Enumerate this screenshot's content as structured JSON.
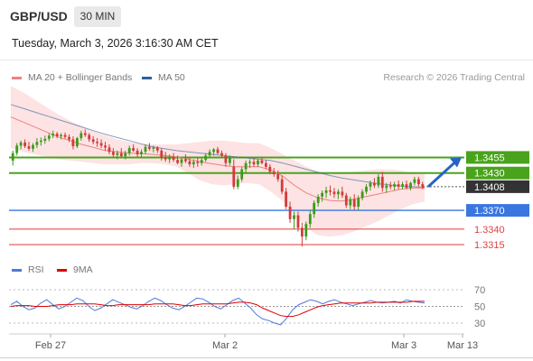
{
  "header": {
    "symbol": "GBP/USD",
    "timeframe": "30 MIN",
    "datetime": "Tuesday, March 3, 2026 3:16:30 AM CET"
  },
  "legend": {
    "ma20_label": "MA 20 + Bollinger Bands",
    "ma20_color": "#f08080",
    "ma50_label": "MA 50",
    "ma50_color": "#2f5f9f",
    "credit": "Research © 2026 Trading Central"
  },
  "rsi_legend": {
    "rsi_label": "RSI",
    "rsi_color": "#4f79d6",
    "ma9_label": "9MA",
    "ma9_color": "#e00000"
  },
  "chart_data": [
    {
      "type": "candlestick",
      "symbol": "GBP/USD",
      "timeframe": "30 MIN",
      "x_ticks": [
        "Feb 27",
        "Mar 2",
        "Mar 3",
        "Mar 13"
      ],
      "price_levels": [
        {
          "label": "1.3455",
          "value": 1.3455,
          "kind": "resistance",
          "color": "#4aa31c"
        },
        {
          "label": "1.3430",
          "value": 1.343,
          "kind": "resistance",
          "color": "#4aa31c"
        },
        {
          "label": "1.3408",
          "value": 1.3408,
          "kind": "last_price",
          "color": "#333333"
        },
        {
          "label": "1.3370",
          "value": 1.337,
          "kind": "pivot",
          "color": "#3a76e0"
        },
        {
          "label": "1.3340",
          "value": 1.334,
          "kind": "support",
          "color": "#e04040"
        },
        {
          "label": "1.3315",
          "value": 1.3315,
          "kind": "support",
          "color": "#e04040"
        }
      ],
      "forecast": {
        "direction": "up",
        "from": 1.3408,
        "to": 1.3455,
        "color": "#2565c7"
      },
      "series": [
        {
          "name": "MA 20 + Bollinger Bands",
          "color": "#f08080",
          "ma": [
            1.352,
            1.3512,
            1.3504,
            1.3496,
            1.3488,
            1.3482,
            1.3476,
            1.3471,
            1.3466,
            1.3464,
            1.3462,
            1.3461,
            1.346,
            1.3458,
            1.3456,
            1.3452,
            1.3448,
            1.3445,
            1.3442,
            1.344,
            1.344,
            1.344,
            1.3435,
            1.3425,
            1.341,
            1.3398,
            1.339,
            1.3386,
            1.3385,
            1.3388,
            1.3392,
            1.3396,
            1.34,
            1.3404,
            1.3406,
            1.3406
          ],
          "upper": [
            1.357,
            1.356,
            1.3548,
            1.3536,
            1.3524,
            1.3514,
            1.3505,
            1.3497,
            1.349,
            1.3484,
            1.348,
            1.3477,
            1.3476,
            1.3476,
            1.3476,
            1.3478,
            1.348,
            1.3482,
            1.3482,
            1.348,
            1.3478,
            1.3478,
            1.347,
            1.346,
            1.345,
            1.344,
            1.3432,
            1.3428,
            1.343,
            1.3432,
            1.3434,
            1.3436,
            1.3436,
            1.3434,
            1.343,
            1.3428
          ],
          "lower": [
            1.347,
            1.3464,
            1.346,
            1.3456,
            1.3452,
            1.345,
            1.3448,
            1.3446,
            1.3444,
            1.3444,
            1.3444,
            1.3446,
            1.3446,
            1.3444,
            1.344,
            1.343,
            1.3418,
            1.3412,
            1.341,
            1.3412,
            1.3414,
            1.3412,
            1.34,
            1.3385,
            1.3362,
            1.3342,
            1.333,
            1.3328,
            1.333,
            1.3336,
            1.3344,
            1.3352,
            1.3362,
            1.3372,
            1.338,
            1.3384
          ]
        },
        {
          "name": "MA 50",
          "color": "#2f5f9f",
          "ma": [
            1.354,
            1.3534,
            1.3528,
            1.3522,
            1.3516,
            1.351,
            1.3504,
            1.3498,
            1.3492,
            1.3487,
            1.3482,
            1.3477,
            1.3472,
            1.3469,
            1.3466,
            1.3464,
            1.3462,
            1.346,
            1.3458,
            1.3456,
            1.3454,
            1.3452,
            1.345,
            1.3446,
            1.3441,
            1.3436,
            1.3431,
            1.3426,
            1.3422,
            1.3419,
            1.3416,
            1.3413,
            1.3411,
            1.3409,
            1.3408,
            1.3407
          ]
        }
      ],
      "candles": [
        [
          1.345,
          1.3466,
          1.3442,
          1.3462
        ],
        [
          1.3462,
          1.3478,
          1.3458,
          1.3474
        ],
        [
          1.3474,
          1.3482,
          1.3468,
          1.3479
        ],
        [
          1.3479,
          1.3484,
          1.347,
          1.3473
        ],
        [
          1.3473,
          1.348,
          1.3466,
          1.3469
        ],
        [
          1.3469,
          1.3478,
          1.3464,
          1.3475
        ],
        [
          1.3475,
          1.3486,
          1.347,
          1.348
        ],
        [
          1.348,
          1.3487,
          1.3474,
          1.3482
        ],
        [
          1.3482,
          1.349,
          1.3477,
          1.3485
        ],
        [
          1.3485,
          1.3494,
          1.3481,
          1.349
        ],
        [
          1.349,
          1.3498,
          1.3486,
          1.3493
        ],
        [
          1.3493,
          1.3496,
          1.3486,
          1.3489
        ],
        [
          1.3489,
          1.3494,
          1.3484,
          1.3491
        ],
        [
          1.3491,
          1.3495,
          1.3485,
          1.3488
        ],
        [
          1.3488,
          1.3492,
          1.348,
          1.3484
        ],
        [
          1.3484,
          1.3489,
          1.3468,
          1.3473
        ],
        [
          1.3473,
          1.3488,
          1.347,
          1.3486
        ],
        [
          1.3486,
          1.3498,
          1.3482,
          1.3494
        ],
        [
          1.3494,
          1.35,
          1.3488,
          1.3491
        ],
        [
          1.3491,
          1.3494,
          1.348,
          1.3484
        ],
        [
          1.3484,
          1.3489,
          1.3476,
          1.348
        ],
        [
          1.348,
          1.3486,
          1.3472,
          1.3478
        ],
        [
          1.3478,
          1.3484,
          1.347,
          1.3474
        ],
        [
          1.3474,
          1.348,
          1.3466,
          1.3471
        ],
        [
          1.3471,
          1.3476,
          1.346,
          1.3464
        ],
        [
          1.3464,
          1.347,
          1.3456,
          1.3459
        ],
        [
          1.3459,
          1.3466,
          1.3452,
          1.3462
        ],
        [
          1.3462,
          1.347,
          1.3454,
          1.3457
        ],
        [
          1.3457,
          1.3466,
          1.3452,
          1.3462
        ],
        [
          1.3462,
          1.3474,
          1.3458,
          1.347
        ],
        [
          1.347,
          1.3476,
          1.3464,
          1.3466
        ],
        [
          1.3466,
          1.347,
          1.3456,
          1.346
        ],
        [
          1.346,
          1.3468,
          1.3455,
          1.3464
        ],
        [
          1.3464,
          1.3476,
          1.346,
          1.3472
        ],
        [
          1.3472,
          1.3478,
          1.3466,
          1.3469
        ],
        [
          1.3469,
          1.3474,
          1.3463,
          1.3471
        ],
        [
          1.3471,
          1.3473,
          1.3462,
          1.3466
        ],
        [
          1.3466,
          1.347,
          1.345,
          1.3455
        ],
        [
          1.3455,
          1.3464,
          1.3448,
          1.3452
        ],
        [
          1.3452,
          1.346,
          1.3446,
          1.3456
        ],
        [
          1.3456,
          1.3462,
          1.3448,
          1.3451
        ],
        [
          1.3451,
          1.3458,
          1.3444,
          1.3446
        ],
        [
          1.3446,
          1.3456,
          1.344,
          1.3452
        ],
        [
          1.3452,
          1.346,
          1.3446,
          1.3449
        ],
        [
          1.3449,
          1.3456,
          1.344,
          1.3444
        ],
        [
          1.3444,
          1.3452,
          1.3438,
          1.3448
        ],
        [
          1.3448,
          1.3455,
          1.344,
          1.3446
        ],
        [
          1.3446,
          1.3454,
          1.3442,
          1.3451
        ],
        [
          1.3451,
          1.3462,
          1.3448,
          1.3458
        ],
        [
          1.3458,
          1.3468,
          1.3454,
          1.3464
        ],
        [
          1.3464,
          1.347,
          1.3458,
          1.3468
        ],
        [
          1.3468,
          1.3472,
          1.346,
          1.3462
        ],
        [
          1.3462,
          1.3466,
          1.3454,
          1.3458
        ],
        [
          1.3458,
          1.3462,
          1.344,
          1.3446
        ],
        [
          1.3446,
          1.3458,
          1.3442,
          1.3454
        ],
        [
          1.344,
          1.3452,
          1.3404,
          1.3408
        ],
        [
          1.3408,
          1.3426,
          1.3404,
          1.342
        ],
        [
          1.342,
          1.344,
          1.3416,
          1.3436
        ],
        [
          1.3436,
          1.345,
          1.343,
          1.3446
        ],
        [
          1.3446,
          1.3452,
          1.3438,
          1.3448
        ],
        [
          1.3448,
          1.3454,
          1.344,
          1.3444
        ],
        [
          1.3444,
          1.3452,
          1.344,
          1.345
        ],
        [
          1.345,
          1.3456,
          1.3444,
          1.3446
        ],
        [
          1.3446,
          1.345,
          1.3436,
          1.344
        ],
        [
          1.344,
          1.3444,
          1.3428,
          1.3432
        ],
        [
          1.3432,
          1.3438,
          1.3424,
          1.3428
        ],
        [
          1.3428,
          1.3434,
          1.3416,
          1.342
        ],
        [
          1.342,
          1.3426,
          1.3396,
          1.34
        ],
        [
          1.34,
          1.3406,
          1.3372,
          1.3376
        ],
        [
          1.3376,
          1.3384,
          1.335,
          1.3356
        ],
        [
          1.3356,
          1.3368,
          1.334,
          1.3362
        ],
        [
          1.3362,
          1.3368,
          1.3336,
          1.3342
        ],
        [
          1.3342,
          1.335,
          1.3312,
          1.3328
        ],
        [
          1.3328,
          1.3352,
          1.3322,
          1.3348
        ],
        [
          1.3348,
          1.337,
          1.3342,
          1.3364
        ],
        [
          1.3364,
          1.3386,
          1.3358,
          1.3382
        ],
        [
          1.3382,
          1.3396,
          1.3376,
          1.3392
        ],
        [
          1.3392,
          1.3402,
          1.3384,
          1.3398
        ],
        [
          1.3398,
          1.3408,
          1.339,
          1.3402
        ],
        [
          1.3402,
          1.341,
          1.3394,
          1.34
        ],
        [
          1.34,
          1.3406,
          1.339,
          1.3396
        ],
        [
          1.3396,
          1.3404,
          1.3388,
          1.34
        ],
        [
          1.34,
          1.3408,
          1.339,
          1.3394
        ],
        [
          1.3394,
          1.3398,
          1.3374,
          1.3378
        ],
        [
          1.3378,
          1.3392,
          1.3372,
          1.3388
        ],
        [
          1.3388,
          1.3396,
          1.337,
          1.3376
        ],
        [
          1.3376,
          1.3394,
          1.337,
          1.339
        ],
        [
          1.339,
          1.3404,
          1.3386,
          1.34
        ],
        [
          1.34,
          1.3412,
          1.3396,
          1.3408
        ],
        [
          1.3408,
          1.3418,
          1.3402,
          1.3414
        ],
        [
          1.3414,
          1.3422,
          1.3406,
          1.341
        ],
        [
          1.341,
          1.3428,
          1.3406,
          1.3424
        ],
        [
          1.3424,
          1.3432,
          1.34,
          1.3406
        ],
        [
          1.3406,
          1.3414,
          1.3398,
          1.341
        ],
        [
          1.341,
          1.3416,
          1.3404,
          1.3408
        ],
        [
          1.3408,
          1.3416,
          1.3402,
          1.3412
        ],
        [
          1.3412,
          1.3418,
          1.3404,
          1.3408
        ],
        [
          1.3408,
          1.3416,
          1.3404,
          1.3412
        ],
        [
          1.3412,
          1.3418,
          1.3404,
          1.3406
        ],
        [
          1.3406,
          1.3416,
          1.3402,
          1.3414
        ],
        [
          1.3414,
          1.3424,
          1.341,
          1.342
        ],
        [
          1.342,
          1.3424,
          1.3408,
          1.3412
        ],
        [
          1.3412,
          1.3416,
          1.3404,
          1.3408
        ]
      ]
    },
    {
      "type": "line",
      "title": "RSI",
      "yticks": [
        70,
        50,
        30
      ],
      "ylim": [
        20,
        80
      ],
      "series": [
        {
          "name": "RSI",
          "color": "#4f79d6",
          "values": [
            52,
            56,
            50,
            46,
            48,
            54,
            58,
            52,
            47,
            50,
            55,
            60,
            57,
            50,
            45,
            48,
            53,
            58,
            55,
            52,
            49,
            47,
            51,
            56,
            60,
            57,
            52,
            48,
            46,
            50,
            55,
            60,
            59,
            55,
            50,
            47,
            52,
            57,
            60,
            54,
            48,
            40,
            35,
            33,
            30,
            28,
            36,
            46,
            52,
            55,
            58,
            56,
            53,
            56,
            58,
            55,
            53,
            51,
            53,
            55,
            57,
            55,
            54,
            55,
            56,
            54,
            58,
            56,
            55,
            54
          ]
        },
        {
          "name": "9MA",
          "color": "#e00000",
          "values": [
            50,
            51,
            51,
            51,
            50,
            50,
            50,
            51,
            52,
            52,
            52,
            53,
            53,
            53,
            53,
            52,
            51,
            51,
            52,
            52,
            52,
            52,
            52,
            52,
            53,
            53,
            53,
            53,
            52,
            51,
            51,
            52,
            53,
            53,
            53,
            53,
            53,
            54,
            55,
            55,
            54,
            52,
            48,
            45,
            42,
            39,
            38,
            38,
            40,
            43,
            46,
            49,
            51,
            52,
            53,
            54,
            54,
            54,
            54,
            54,
            54,
            55,
            55,
            55,
            55,
            55,
            55,
            56,
            56,
            56
          ]
        }
      ]
    }
  ]
}
